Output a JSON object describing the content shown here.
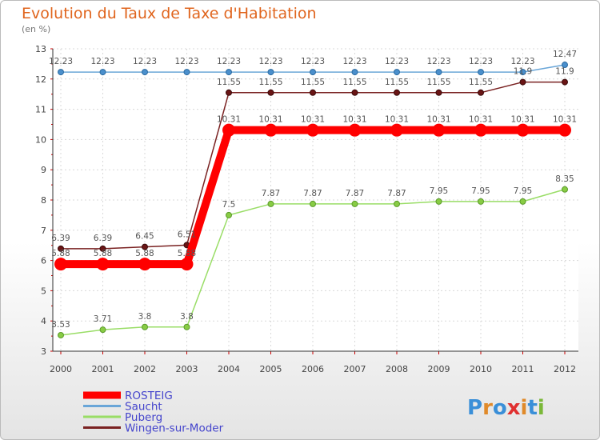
{
  "chart_data": {
    "type": "line",
    "title": "Evolution du Taux de Taxe d'Habitation",
    "ylabel": "(en %)",
    "xlabel": "",
    "x": [
      "2000",
      "2001",
      "2002",
      "2003",
      "2004",
      "2005",
      "2006",
      "2007",
      "2008",
      "2009",
      "2010",
      "2011",
      "2012"
    ],
    "ylim": [
      3,
      13
    ],
    "yticks": [
      3,
      4,
      5,
      6,
      7,
      8,
      9,
      10,
      11,
      12,
      13
    ],
    "grid": true,
    "legend": "bottom-left",
    "series": [
      {
        "name": "ROSTEIG",
        "color": "#ff0000",
        "values": [
          5.88,
          5.88,
          5.88,
          5.88,
          10.31,
          10.31,
          10.31,
          10.31,
          10.31,
          10.31,
          10.31,
          10.31,
          10.31
        ],
        "labels": [
          "5.88",
          "5.88",
          "5.88",
          "5.88",
          "10.31",
          "10.31",
          "10.31",
          "10.31",
          "10.31",
          "10.31",
          "10.31",
          "10.31",
          "10.31"
        ]
      },
      {
        "name": "Saucht",
        "color": "#6aa6d8",
        "values": [
          12.23,
          12.23,
          12.23,
          12.23,
          12.23,
          12.23,
          12.23,
          12.23,
          12.23,
          12.23,
          12.23,
          12.23,
          12.47
        ],
        "labels": [
          "12.23",
          "12.23",
          "12.23",
          "12.23",
          "12.23",
          "12.23",
          "12.23",
          "12.23",
          "12.23",
          "12.23",
          "12.23",
          "12.23",
          "12.47"
        ]
      },
      {
        "name": "Puberg",
        "color": "#99dd66",
        "values": [
          3.53,
          3.71,
          3.8,
          3.8,
          7.5,
          7.87,
          7.87,
          7.87,
          7.87,
          7.95,
          7.95,
          7.95,
          8.35
        ],
        "labels": [
          "3.53",
          "3.71",
          "3.8",
          "3.8",
          "7.5",
          "7.87",
          "7.87",
          "7.87",
          "7.87",
          "7.95",
          "7.95",
          "7.95",
          "8.35"
        ]
      },
      {
        "name": "Wingen-sur-Moder",
        "color": "#7a2222",
        "values": [
          6.39,
          6.39,
          6.45,
          6.51,
          11.55,
          11.55,
          11.55,
          11.55,
          11.55,
          11.55,
          11.55,
          11.9,
          11.9
        ],
        "labels": [
          "6.39",
          "6.39",
          "6.45",
          "6.51",
          "11.55",
          "11.55",
          "11.55",
          "11.55",
          "11.55",
          "11.55",
          "11.55",
          "11.9",
          "11.9"
        ]
      }
    ]
  },
  "logo": {
    "text": "Proxiti",
    "letters": [
      "P",
      "r",
      "o",
      "x",
      "i",
      "t",
      "i"
    ],
    "colors": [
      "#3a8fd8",
      "#e08a2a",
      "#3a8fd8",
      "#e03030",
      "#e08a2a",
      "#3a8fd8",
      "#7ab838"
    ]
  }
}
